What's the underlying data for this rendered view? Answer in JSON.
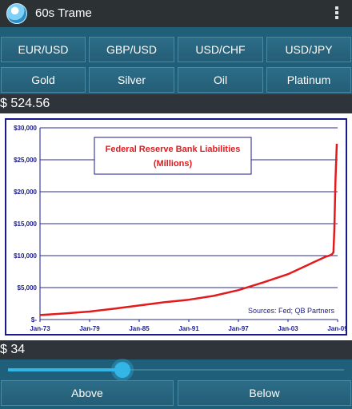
{
  "app": {
    "title": "60s Trame"
  },
  "currency_buttons": [
    {
      "label": "EUR/USD"
    },
    {
      "label": "GBP/USD"
    },
    {
      "label": "USD/CHF"
    },
    {
      "label": "USD/JPY"
    }
  ],
  "commodity_buttons": [
    {
      "label": "Gold"
    },
    {
      "label": "Silver"
    },
    {
      "label": "Oil"
    },
    {
      "label": "Platinum"
    }
  ],
  "price": "$ 524.56",
  "chart_data": {
    "type": "line",
    "title": "Federal Reserve Bank Liabilities",
    "subtitle": "(Millions)",
    "annotation": "Sources: Fed; QB Partners",
    "x_tick_labels": [
      "Jan-73",
      "Jan-79",
      "Jan-85",
      "Jan-91",
      "Jan-97",
      "Jan-03",
      "Jan-09"
    ],
    "y_tick_labels": [
      "$-",
      "$5,000",
      "$10,000",
      "$15,000",
      "$20,000",
      "$25,000",
      "$30,000"
    ],
    "ylim": [
      0,
      30000
    ],
    "xlim": [
      1973,
      2009
    ],
    "grid": "horizontal",
    "series_color": "#e31a1c",
    "x": [
      1973,
      1976,
      1979,
      1982,
      1985,
      1988,
      1991,
      1994,
      1997,
      2000,
      2003,
      2006,
      2007.5,
      2008.0,
      2008.3,
      2008.5,
      2008.6,
      2008.75,
      2008.9
    ],
    "y": [
      700,
      950,
      1250,
      1700,
      2200,
      2700,
      3100,
      3700,
      4600,
      5800,
      7100,
      8900,
      9800,
      10000,
      10200,
      10500,
      14000,
      22000,
      27500
    ]
  },
  "amount": "$ 34",
  "slider": {
    "value_fraction": 0.34
  },
  "actions": {
    "above_label": "Above",
    "below_label": "Below"
  }
}
